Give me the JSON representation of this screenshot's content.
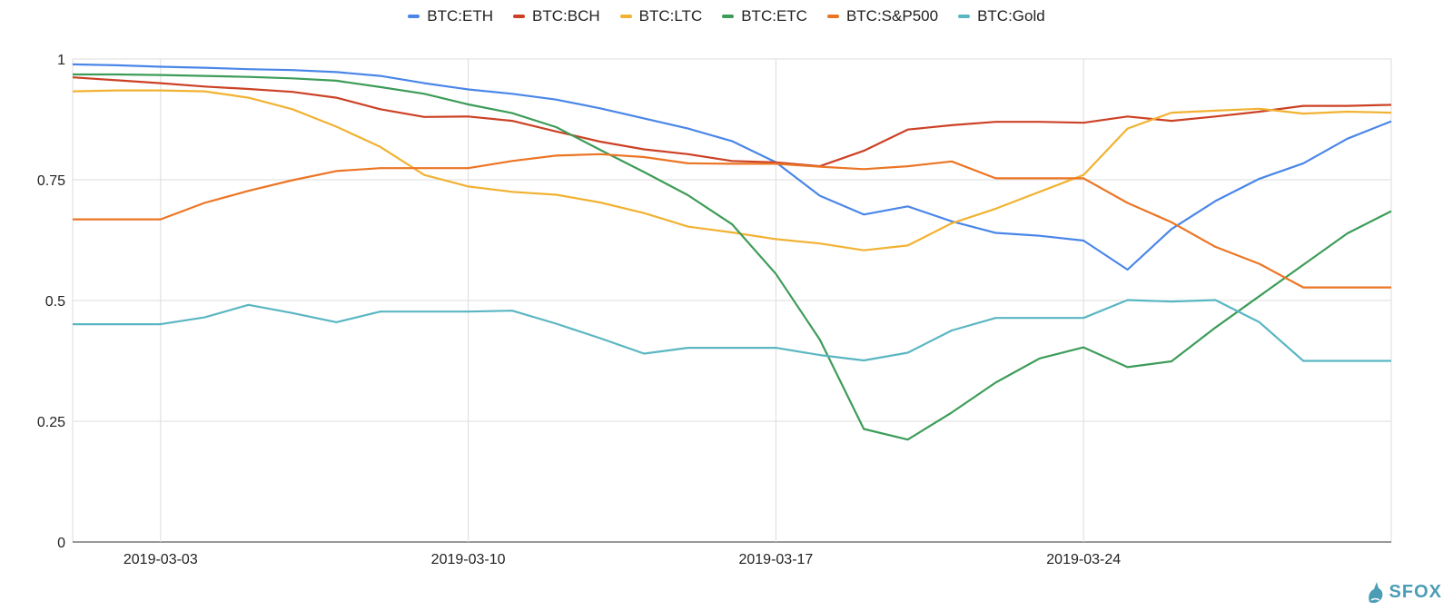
{
  "chart_data": {
    "type": "line",
    "x": [
      "2019-03-01",
      "2019-03-02",
      "2019-03-03",
      "2019-03-04",
      "2019-03-05",
      "2019-03-06",
      "2019-03-07",
      "2019-03-08",
      "2019-03-09",
      "2019-03-10",
      "2019-03-11",
      "2019-03-12",
      "2019-03-13",
      "2019-03-14",
      "2019-03-15",
      "2019-03-16",
      "2019-03-17",
      "2019-03-18",
      "2019-03-19",
      "2019-03-20",
      "2019-03-21",
      "2019-03-22",
      "2019-03-23",
      "2019-03-24",
      "2019-03-25",
      "2019-03-26",
      "2019-03-27",
      "2019-03-28",
      "2019-03-29",
      "2019-03-30",
      "2019-03-31"
    ],
    "x_ticks": [
      "2019-03-03",
      "2019-03-10",
      "2019-03-17",
      "2019-03-24"
    ],
    "ylim": [
      0,
      1
    ],
    "y_ticks": [
      0,
      0.25,
      0.5,
      0.75,
      1
    ],
    "y_tick_labels": [
      "0",
      "0.25",
      "0.5",
      "0.75",
      "1"
    ],
    "grid": true,
    "legend_position": "top",
    "series": [
      {
        "name": "BTC:ETH",
        "color": "#4a86e8",
        "values": [
          0.989,
          0.987,
          0.984,
          0.982,
          0.979,
          0.977,
          0.973,
          0.965,
          0.95,
          0.937,
          0.928,
          0.916,
          0.898,
          0.877,
          0.856,
          0.83,
          0.786,
          0.717,
          0.678,
          0.695,
          0.664,
          0.64,
          0.634,
          0.624,
          0.564,
          0.648,
          0.706,
          0.752,
          0.784,
          0.835,
          0.871
        ]
      },
      {
        "name": "BTC:BCH",
        "color": "#cc4125",
        "values": [
          0.962,
          0.956,
          0.95,
          0.943,
          0.938,
          0.932,
          0.92,
          0.896,
          0.88,
          0.881,
          0.872,
          0.85,
          0.829,
          0.813,
          0.803,
          0.789,
          0.786,
          0.778,
          0.81,
          0.854,
          0.863,
          0.87,
          0.87,
          0.868,
          0.881,
          0.872,
          0.881,
          0.891,
          0.903,
          0.903,
          0.905
        ]
      },
      {
        "name": "BTC:LTC",
        "color": "#f1b232",
        "values": [
          0.933,
          0.935,
          0.935,
          0.933,
          0.92,
          0.896,
          0.86,
          0.818,
          0.76,
          0.736,
          0.725,
          0.719,
          0.703,
          0.681,
          0.653,
          0.641,
          0.627,
          0.618,
          0.604,
          0.614,
          0.66,
          0.69,
          0.725,
          0.76,
          0.856,
          0.889,
          0.893,
          0.897,
          0.887,
          0.891,
          0.889
        ]
      },
      {
        "name": "BTC:ETC",
        "color": "#3d9c58",
        "values": [
          0.968,
          0.968,
          0.967,
          0.965,
          0.963,
          0.96,
          0.955,
          0.942,
          0.928,
          0.906,
          0.888,
          0.859,
          0.812,
          0.766,
          0.718,
          0.658,
          0.555,
          0.419,
          0.234,
          0.212,
          0.268,
          0.33,
          0.38,
          0.403,
          0.362,
          0.374,
          0.444,
          0.509,
          0.574,
          0.639,
          0.685
        ]
      },
      {
        "name": "BTC:S&P500",
        "color": "#ec7524",
        "values": [
          0.668,
          0.668,
          0.668,
          0.702,
          0.727,
          0.749,
          0.768,
          0.774,
          0.774,
          0.774,
          0.789,
          0.8,
          0.803,
          0.797,
          0.784,
          0.783,
          0.783,
          0.777,
          0.772,
          0.778,
          0.788,
          0.753,
          0.753,
          0.753,
          0.702,
          0.662,
          0.611,
          0.576,
          0.527,
          0.527,
          0.527
        ]
      },
      {
        "name": "BTC:Gold",
        "color": "#5ab6c2",
        "values": [
          0.451,
          0.451,
          0.451,
          0.465,
          0.491,
          0.474,
          0.455,
          0.477,
          0.477,
          0.477,
          0.479,
          0.452,
          0.422,
          0.39,
          0.402,
          0.402,
          0.402,
          0.387,
          0.376,
          0.392,
          0.438,
          0.464,
          0.464,
          0.464,
          0.501,
          0.498,
          0.501,
          0.455,
          0.375,
          0.375,
          0.375
        ]
      }
    ]
  },
  "branding": {
    "logo_text": "SFOX",
    "logo_icon": "fox-icon"
  }
}
